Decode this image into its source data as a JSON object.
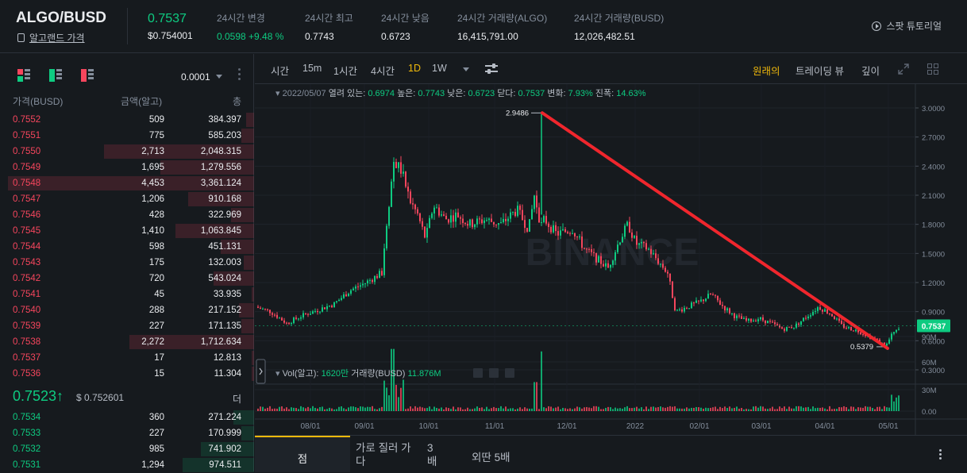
{
  "header": {
    "pair": "ALGO/BUSD",
    "pair_sub": "알고랜드 가격",
    "last_price": "0.7537",
    "last_price_usd": "$0.754001",
    "stats": [
      {
        "label": "24시간 변경",
        "value": "0.0598 +9.48 %",
        "color": "green"
      },
      {
        "label": "24시간 최고",
        "value": "0.7743",
        "color": ""
      },
      {
        "label": "24시간 낮음",
        "value": "0.6723",
        "color": ""
      },
      {
        "label": "24시간 거래량(ALGO)",
        "value": "16,415,791.00",
        "color": ""
      },
      {
        "label": "24시간 거래량(BUSD)",
        "value": "12,026,482.51",
        "color": ""
      }
    ],
    "tutorial": "스팟 튜토리얼"
  },
  "orderbook": {
    "tick": "0.0001",
    "col_price": "가격(BUSD)",
    "col_amount": "금액(알고)",
    "col_total": "총",
    "asks": [
      {
        "price": "0.7552",
        "amount": "509",
        "total": "384.397",
        "depth": 0.03
      },
      {
        "price": "0.7551",
        "amount": "775",
        "total": "585.203",
        "depth": 0.05
      },
      {
        "price": "0.7550",
        "amount": "2,713",
        "total": "2,048.315",
        "depth": 0.59
      },
      {
        "price": "0.7549",
        "amount": "1,695",
        "total": "1,279.556",
        "depth": 0.37
      },
      {
        "price": "0.7548",
        "amount": "4,453",
        "total": "3,361.124",
        "depth": 0.97
      },
      {
        "price": "0.7547",
        "amount": "1,206",
        "total": "910.168",
        "depth": 0.26
      },
      {
        "price": "0.7546",
        "amount": "428",
        "total": "322.969",
        "depth": 0.09
      },
      {
        "price": "0.7545",
        "amount": "1,410",
        "total": "1,063.845",
        "depth": 0.31
      },
      {
        "price": "0.7544",
        "amount": "598",
        "total": "451.131",
        "depth": 0.13
      },
      {
        "price": "0.7543",
        "amount": "175",
        "total": "132.003",
        "depth": 0.04
      },
      {
        "price": "0.7542",
        "amount": "720",
        "total": "543.024",
        "depth": 0.16
      },
      {
        "price": "0.7541",
        "amount": "45",
        "total": "33.935",
        "depth": 0.01
      },
      {
        "price": "0.7540",
        "amount": "288",
        "total": "217.152",
        "depth": 0.06
      },
      {
        "price": "0.7539",
        "amount": "227",
        "total": "171.135",
        "depth": 0.05
      },
      {
        "price": "0.7538",
        "amount": "2,272",
        "total": "1,712.634",
        "depth": 0.49
      },
      {
        "price": "0.7537",
        "amount": "17",
        "total": "12.813",
        "depth": 0.01
      },
      {
        "price": "0.7536",
        "amount": "15",
        "total": "11.304",
        "depth": 0.01
      }
    ],
    "last_price": "0.7523↑",
    "last_price_usd": "$ 0.752601",
    "more": "더",
    "bids": [
      {
        "price": "0.7534",
        "amount": "360",
        "total": "271.224",
        "depth": 0.08
      },
      {
        "price": "0.7533",
        "amount": "227",
        "total": "170.999",
        "depth": 0.05
      },
      {
        "price": "0.7532",
        "amount": "985",
        "total": "741.902",
        "depth": 0.21
      },
      {
        "price": "0.7531",
        "amount": "1,294",
        "total": "974.511",
        "depth": 0.28
      }
    ]
  },
  "chart_toolbar": {
    "intervals": [
      "시간",
      "15m",
      "1시간",
      "4시간",
      "1D",
      "1W"
    ],
    "active_interval": "1D",
    "views": [
      "원래의",
      "트레이딩 뷰",
      "깊이"
    ],
    "active_view": "원래의"
  },
  "chart_data": {
    "type": "candlestick",
    "legend": {
      "date": "2022/05/07",
      "open_label": "열려 있는:",
      "open": "0.6974",
      "high_label": "높은:",
      "high": "0.7743",
      "low_label": "낮은:",
      "low": "0.6723",
      "close_label": "닫다:",
      "close": "0.7537",
      "change_label": "변화:",
      "change": "7.93%",
      "amp_label": "진폭:",
      "amp": "14.63%"
    },
    "price_axis": [
      "3.0000",
      "2.7000",
      "2.4000",
      "2.1000",
      "1.8000",
      "1.5000",
      "1.2000",
      "0.9000",
      "0.6000",
      "0.3000"
    ],
    "price_ylim": [
      0.3,
      3.0
    ],
    "current_price_tag": "0.7537",
    "max_label": "2.9486",
    "min_label": "0.5379",
    "x_labels": [
      "08/01",
      "09/01",
      "10/01",
      "11/01",
      "12/01",
      "2022",
      "02/01",
      "03/01",
      "04/01",
      "05/01"
    ],
    "volume_legend": {
      "label": "Vol(알고):",
      "value": "1620만",
      "label2": "거래량(BUSD)",
      "value2": "11.876M"
    },
    "volume_axis": [
      "90M",
      "60M",
      "30M",
      "0.00"
    ],
    "volume_ylim": [
      0,
      90
    ],
    "trendline": {
      "from": "2.9486",
      "to": "0.5379"
    },
    "watermark": "BINANCE"
  },
  "bottom_tabs": [
    "점",
    "가로 질러 가다",
    "3배",
    "외딴 5배"
  ]
}
